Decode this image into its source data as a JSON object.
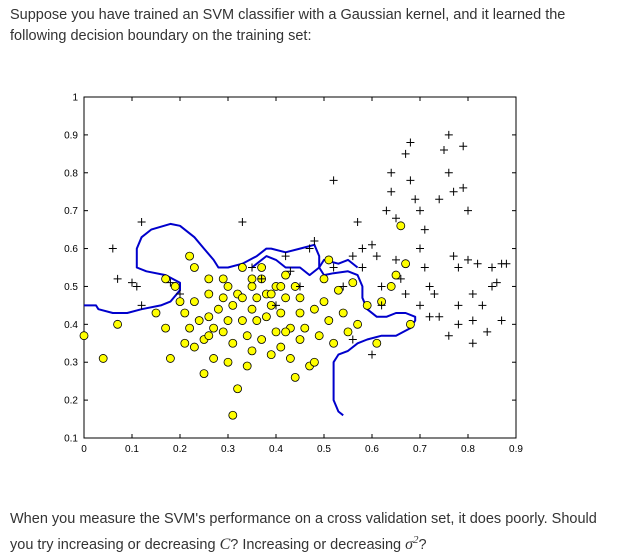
{
  "question": {
    "intro": "Suppose you have trained an SVM classifier with a Gaussian kernel, and it learned the following decision boundary on the training set:",
    "followup_part1": "When you measure the SVM's performance on a cross validation set, it does poorly. Should you try increasing or decreasing ",
    "symbol_c": "C",
    "followup_part2": "? Increasing or decreasing ",
    "symbol_sigma": "σ",
    "symbol_sigma_exp": "2",
    "followup_part3": "?"
  },
  "chart_data": {
    "type": "scatter",
    "xlim": [
      0,
      0.9
    ],
    "ylim": [
      0.1,
      1
    ],
    "xticks": [
      "0",
      "0.1",
      "0.2",
      "0.3",
      "0.4",
      "0.5",
      "0.6",
      "0.7",
      "0.8",
      "0.9"
    ],
    "yticks": [
      "0.1",
      "0.2",
      "0.3",
      "0.4",
      "0.5",
      "0.6",
      "0.7",
      "0.8",
      "0.9",
      "1"
    ],
    "grid": false,
    "legend": "none",
    "colors": {
      "positive_marker": "#000000",
      "negative_fill": "#ffff00",
      "negative_edge": "#000000",
      "boundary": "#0000cc"
    },
    "series": [
      {
        "marker": "plus",
        "points": [
          [
            0.06,
            0.6
          ],
          [
            0.07,
            0.52
          ],
          [
            0.1,
            0.51
          ],
          [
            0.11,
            0.5
          ],
          [
            0.12,
            0.45
          ],
          [
            0.12,
            0.67
          ],
          [
            0.18,
            0.51
          ],
          [
            0.2,
            0.48
          ],
          [
            0.33,
            0.67
          ],
          [
            0.35,
            0.55
          ],
          [
            0.37,
            0.52
          ],
          [
            0.4,
            0.45
          ],
          [
            0.42,
            0.58
          ],
          [
            0.43,
            0.54
          ],
          [
            0.45,
            0.5
          ],
          [
            0.47,
            0.6
          ],
          [
            0.48,
            0.62
          ],
          [
            0.52,
            0.55
          ],
          [
            0.52,
            0.78
          ],
          [
            0.54,
            0.5
          ],
          [
            0.56,
            0.58
          ],
          [
            0.57,
            0.67
          ],
          [
            0.58,
            0.6
          ],
          [
            0.58,
            0.55
          ],
          [
            0.6,
            0.61
          ],
          [
            0.61,
            0.58
          ],
          [
            0.62,
            0.5
          ],
          [
            0.62,
            0.45
          ],
          [
            0.63,
            0.7
          ],
          [
            0.64,
            0.75
          ],
          [
            0.64,
            0.8
          ],
          [
            0.65,
            0.68
          ],
          [
            0.65,
            0.57
          ],
          [
            0.66,
            0.52
          ],
          [
            0.67,
            0.48
          ],
          [
            0.67,
            0.85
          ],
          [
            0.68,
            0.78
          ],
          [
            0.68,
            0.88
          ],
          [
            0.69,
            0.73
          ],
          [
            0.7,
            0.7
          ],
          [
            0.7,
            0.6
          ],
          [
            0.7,
            0.45
          ],
          [
            0.71,
            0.65
          ],
          [
            0.71,
            0.55
          ],
          [
            0.72,
            0.5
          ],
          [
            0.72,
            0.42
          ],
          [
            0.73,
            0.48
          ],
          [
            0.74,
            0.73
          ],
          [
            0.75,
            0.86
          ],
          [
            0.76,
            0.9
          ],
          [
            0.76,
            0.8
          ],
          [
            0.77,
            0.75
          ],
          [
            0.77,
            0.58
          ],
          [
            0.78,
            0.55
          ],
          [
            0.78,
            0.45
          ],
          [
            0.78,
            0.4
          ],
          [
            0.79,
            0.87
          ],
          [
            0.79,
            0.76
          ],
          [
            0.8,
            0.7
          ],
          [
            0.8,
            0.57
          ],
          [
            0.81,
            0.48
          ],
          [
            0.81,
            0.41
          ],
          [
            0.81,
            0.35
          ],
          [
            0.82,
            0.56
          ],
          [
            0.83,
            0.45
          ],
          [
            0.84,
            0.38
          ],
          [
            0.85,
            0.5
          ],
          [
            0.85,
            0.55
          ],
          [
            0.86,
            0.51
          ],
          [
            0.87,
            0.56
          ],
          [
            0.87,
            0.41
          ],
          [
            0.88,
            0.56
          ],
          [
            0.76,
            0.37
          ],
          [
            0.6,
            0.32
          ],
          [
            0.56,
            0.36
          ],
          [
            0.74,
            0.42
          ]
        ]
      },
      {
        "marker": "circle",
        "points": [
          [
            0.0,
            0.37
          ],
          [
            0.04,
            0.31
          ],
          [
            0.07,
            0.4
          ],
          [
            0.15,
            0.43
          ],
          [
            0.17,
            0.39
          ],
          [
            0.17,
            0.52
          ],
          [
            0.18,
            0.31
          ],
          [
            0.19,
            0.5
          ],
          [
            0.2,
            0.46
          ],
          [
            0.21,
            0.43
          ],
          [
            0.21,
            0.35
          ],
          [
            0.22,
            0.39
          ],
          [
            0.22,
            0.58
          ],
          [
            0.23,
            0.55
          ],
          [
            0.23,
            0.46
          ],
          [
            0.23,
            0.34
          ],
          [
            0.24,
            0.41
          ],
          [
            0.25,
            0.36
          ],
          [
            0.25,
            0.27
          ],
          [
            0.26,
            0.48
          ],
          [
            0.26,
            0.42
          ],
          [
            0.26,
            0.52
          ],
          [
            0.27,
            0.39
          ],
          [
            0.27,
            0.31
          ],
          [
            0.28,
            0.44
          ],
          [
            0.29,
            0.47
          ],
          [
            0.29,
            0.38
          ],
          [
            0.3,
            0.5
          ],
          [
            0.3,
            0.41
          ],
          [
            0.3,
            0.3
          ],
          [
            0.31,
            0.45
          ],
          [
            0.31,
            0.35
          ],
          [
            0.31,
            0.16
          ],
          [
            0.32,
            0.23
          ],
          [
            0.32,
            0.48
          ],
          [
            0.33,
            0.41
          ],
          [
            0.33,
            0.55
          ],
          [
            0.34,
            0.37
          ],
          [
            0.34,
            0.29
          ],
          [
            0.35,
            0.44
          ],
          [
            0.35,
            0.5
          ],
          [
            0.35,
            0.33
          ],
          [
            0.36,
            0.47
          ],
          [
            0.36,
            0.41
          ],
          [
            0.37,
            0.55
          ],
          [
            0.37,
            0.36
          ],
          [
            0.38,
            0.48
          ],
          [
            0.38,
            0.42
          ],
          [
            0.39,
            0.45
          ],
          [
            0.39,
            0.32
          ],
          [
            0.4,
            0.5
          ],
          [
            0.4,
            0.38
          ],
          [
            0.41,
            0.43
          ],
          [
            0.41,
            0.34
          ],
          [
            0.42,
            0.47
          ],
          [
            0.42,
            0.53
          ],
          [
            0.43,
            0.39
          ],
          [
            0.43,
            0.31
          ],
          [
            0.44,
            0.5
          ],
          [
            0.44,
            0.26
          ],
          [
            0.45,
            0.36
          ],
          [
            0.45,
            0.43
          ],
          [
            0.46,
            0.39
          ],
          [
            0.47,
            0.29
          ],
          [
            0.48,
            0.44
          ],
          [
            0.49,
            0.37
          ],
          [
            0.5,
            0.46
          ],
          [
            0.5,
            0.52
          ],
          [
            0.51,
            0.41
          ],
          [
            0.51,
            0.57
          ],
          [
            0.52,
            0.35
          ],
          [
            0.53,
            0.49
          ],
          [
            0.54,
            0.43
          ],
          [
            0.55,
            0.38
          ],
          [
            0.56,
            0.51
          ],
          [
            0.57,
            0.4
          ],
          [
            0.59,
            0.45
          ],
          [
            0.61,
            0.35
          ],
          [
            0.62,
            0.46
          ],
          [
            0.64,
            0.5
          ],
          [
            0.65,
            0.53
          ],
          [
            0.67,
            0.56
          ],
          [
            0.68,
            0.4
          ],
          [
            0.66,
            0.66
          ],
          [
            0.37,
            0.52
          ],
          [
            0.42,
            0.38
          ],
          [
            0.48,
            0.3
          ],
          [
            0.35,
            0.52
          ],
          [
            0.39,
            0.48
          ],
          [
            0.26,
            0.37
          ],
          [
            0.45,
            0.47
          ],
          [
            0.29,
            0.52
          ],
          [
            0.33,
            0.47
          ],
          [
            0.41,
            0.5
          ]
        ]
      }
    ],
    "boundary": [
      [
        0.0,
        0.45
      ],
      [
        0.025,
        0.45
      ],
      [
        0.03,
        0.44
      ],
      [
        0.06,
        0.43
      ],
      [
        0.09,
        0.43
      ],
      [
        0.12,
        0.44
      ],
      [
        0.16,
        0.45
      ],
      [
        0.18,
        0.46
      ],
      [
        0.2,
        0.49
      ],
      [
        0.2,
        0.51
      ],
      [
        0.17,
        0.53
      ],
      [
        0.13,
        0.54
      ],
      [
        0.11,
        0.55
      ],
      [
        0.11,
        0.6
      ],
      [
        0.12,
        0.63
      ],
      [
        0.14,
        0.65
      ],
      [
        0.18,
        0.665
      ],
      [
        0.2,
        0.66
      ],
      [
        0.23,
        0.63
      ],
      [
        0.25,
        0.6
      ],
      [
        0.27,
        0.57
      ],
      [
        0.28,
        0.55
      ],
      [
        0.3,
        0.55
      ],
      [
        0.33,
        0.56
      ],
      [
        0.36,
        0.58
      ],
      [
        0.38,
        0.6
      ],
      [
        0.39,
        0.6
      ],
      [
        0.42,
        0.59
      ],
      [
        0.45,
        0.6
      ],
      [
        0.48,
        0.61
      ],
      [
        0.49,
        0.58
      ],
      [
        0.49,
        0.55
      ],
      [
        0.5,
        0.53
      ],
      [
        0.52,
        0.535
      ],
      [
        0.55,
        0.54
      ],
      [
        0.57,
        0.53
      ],
      [
        0.58,
        0.5
      ],
      [
        0.58,
        0.47
      ],
      [
        0.59,
        0.44
      ],
      [
        0.61,
        0.42
      ],
      [
        0.63,
        0.42
      ],
      [
        0.65,
        0.43
      ],
      [
        0.67,
        0.43
      ],
      [
        0.69,
        0.42
      ],
      [
        0.69,
        0.41
      ],
      [
        0.68,
        0.39
      ],
      [
        0.65,
        0.37
      ],
      [
        0.62,
        0.37
      ],
      [
        0.59,
        0.36
      ],
      [
        0.57,
        0.35
      ],
      [
        0.55,
        0.33
      ],
      [
        0.53,
        0.32
      ],
      [
        0.52,
        0.3
      ],
      [
        0.52,
        0.26
      ],
      [
        0.52,
        0.2
      ],
      [
        0.53,
        0.17
      ],
      [
        0.54,
        0.16
      ]
    ],
    "boundary_inner": [
      [
        0.35,
        0.55
      ],
      [
        0.36,
        0.56
      ],
      [
        0.38,
        0.58
      ],
      [
        0.4,
        0.57
      ],
      [
        0.42,
        0.55
      ],
      [
        0.45,
        0.55
      ],
      [
        0.47,
        0.53
      ],
      [
        0.49,
        0.55
      ],
      [
        0.5,
        0.57
      ],
      [
        0.53,
        0.56
      ],
      [
        0.55,
        0.57
      ],
      [
        0.57,
        0.55
      ]
    ]
  }
}
